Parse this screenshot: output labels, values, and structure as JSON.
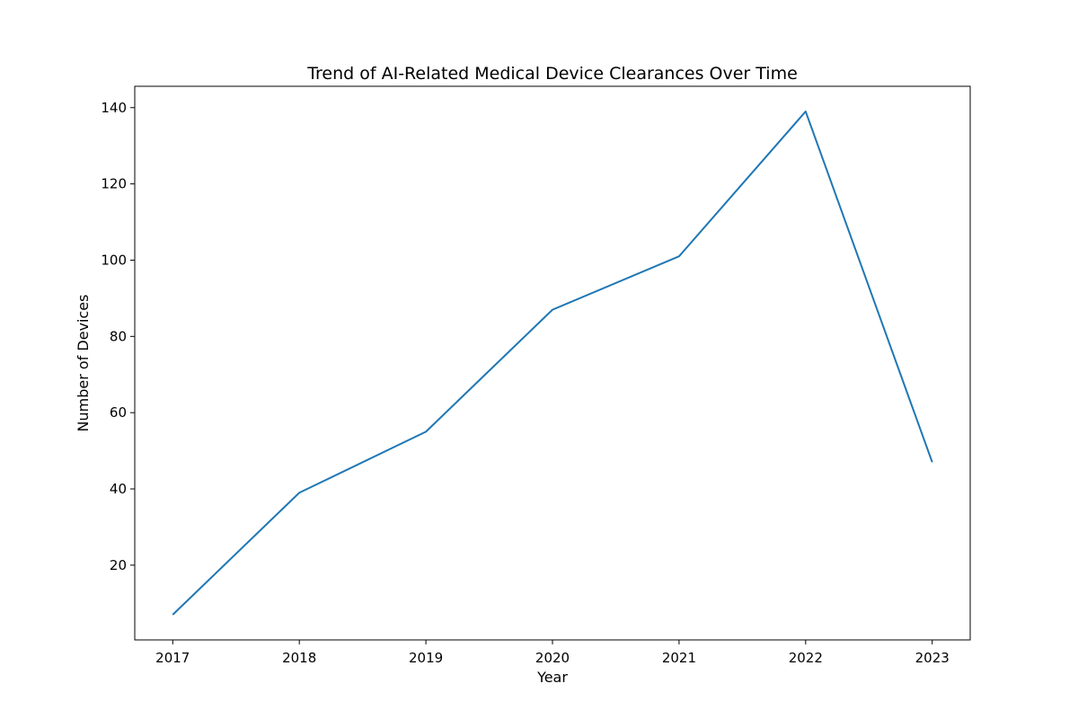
{
  "chart_data": {
    "type": "line",
    "title": "Trend of AI-Related Medical Device Clearances Over Time",
    "xlabel": "Year",
    "ylabel": "Number of Devices",
    "x": [
      2017,
      2018,
      2019,
      2020,
      2021,
      2022,
      2023
    ],
    "series": [
      {
        "name": "",
        "values": [
          7,
          39,
          55,
          87,
          101,
          139,
          47
        ]
      }
    ],
    "xlim": [
      2016.7,
      2023.3
    ],
    "ylim": [
      0.4,
      145.6
    ],
    "xticks": [
      2017,
      2018,
      2019,
      2020,
      2021,
      2022,
      2023
    ],
    "yticks": [
      20,
      40,
      60,
      80,
      100,
      120,
      140
    ],
    "grid": false,
    "legend": "none",
    "line_color": "#1f77b4"
  }
}
